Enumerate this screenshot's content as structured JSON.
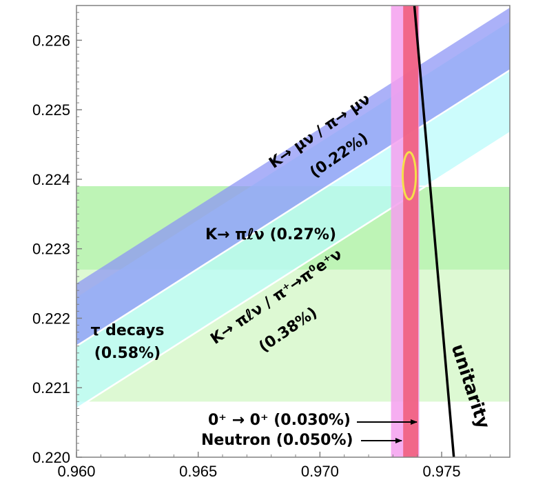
{
  "chart_data": {
    "type": "band-constraint plot",
    "xlim": [
      0.96,
      0.9778
    ],
    "ylim": [
      0.22,
      0.2265
    ],
    "x_ticks": [
      "0.960",
      "0.965",
      "0.970",
      "0.975"
    ],
    "x_tick_values": [
      0.96,
      0.965,
      0.97,
      0.975
    ],
    "y_ticks": [
      "0.220",
      "0.221",
      "0.222",
      "0.223",
      "0.224",
      "0.225",
      "0.226"
    ],
    "y_tick_values": [
      0.22,
      0.221,
      0.222,
      0.223,
      0.224,
      0.225,
      0.226
    ],
    "bands": {
      "tau_decays": {
        "label_line1": "τ decays",
        "label_line2": "(0.58%)",
        "y_center": 0.22235,
        "y_half_width": 0.00155,
        "color": "#c6f5b5"
      },
      "kl3": {
        "label": "K→ πℓν (0.27%)",
        "y_center": 0.2233,
        "y_half_width": 0.0006,
        "color": "#9ff09a"
      },
      "kmu2_ratio": {
        "label_line1": "K→ μν / π→ μν",
        "label_line2": "(0.22%)",
        "y_at_x0": 0.22205,
        "slope": 0.223,
        "half_width": 0.00045,
        "color": "#8a93f5"
      },
      "kl3_pibeta": {
        "label_line1": "K→ πℓν / π⁺→π⁰e⁺ν",
        "label_line2": "(0.38%)",
        "y_at_x0": 0.2215,
        "slope": 0.223,
        "half_width": 0.0008,
        "color": "#b8fbfb"
      },
      "superallowed": {
        "label": "0⁺ → 0⁺ (0.030%)",
        "x_center": 0.97373,
        "x_half_width": 0.00031,
        "color": "#f05a78"
      },
      "neutron": {
        "label": "Neutron (0.050%)",
        "x_center": 0.9735,
        "x_half_width": 0.00058,
        "color": "#f4a0ee"
      }
    },
    "unitarity": {
      "label": "unitarity",
      "points": [
        [
          0.97388,
          0.2265
        ],
        [
          0.9755,
          0.22
        ]
      ]
    },
    "fit_ellipse": {
      "x_center": 0.97367,
      "y_center": 0.22405,
      "x_radius": 0.00027,
      "y_radius": 0.00034,
      "color": "#f5e04a"
    },
    "colors": {
      "background": "#ffffff",
      "frame": "#808080",
      "arrow": "#000000"
    }
  }
}
